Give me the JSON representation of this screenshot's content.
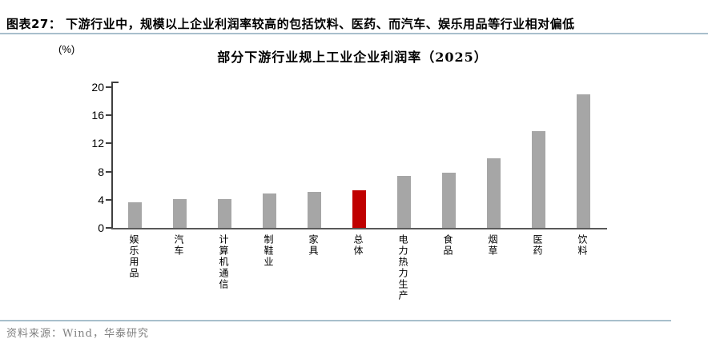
{
  "figure": {
    "caption": "图表27：  下游行业中，规模以上企业利润率较高的包括饮料、医药、而汽车、娱乐用品等行业相对偏低",
    "source": "资料来源：Wind，华泰研究"
  },
  "chart_data": {
    "type": "bar",
    "title": "部分下游行业规上工业企业利润率（2025）",
    "unit_label": "(%)",
    "xlabel": "",
    "ylabel": "(%)",
    "categories": [
      "娱乐用品",
      "汽车",
      "计算机通信",
      "制鞋业",
      "家具",
      "总体",
      "电力热力生产",
      "食品",
      "烟草",
      "医药",
      "饮料"
    ],
    "values": [
      3.6,
      4.1,
      4.1,
      4.9,
      5.1,
      5.3,
      7.4,
      7.8,
      9.9,
      13.8,
      19.0
    ],
    "highlight_category": "总体",
    "highlight_index": 5,
    "yticks": [
      0,
      4,
      8,
      12,
      16,
      20
    ],
    "ylim": [
      0,
      20
    ],
    "bar_color": "#A6A6A6",
    "highlight_color": "#C00000",
    "grid": false,
    "legend_position": "none"
  },
  "colors": {
    "rule_line": "#A8BFCC",
    "axis": "#3F3F3F",
    "source_text": "#808080"
  }
}
